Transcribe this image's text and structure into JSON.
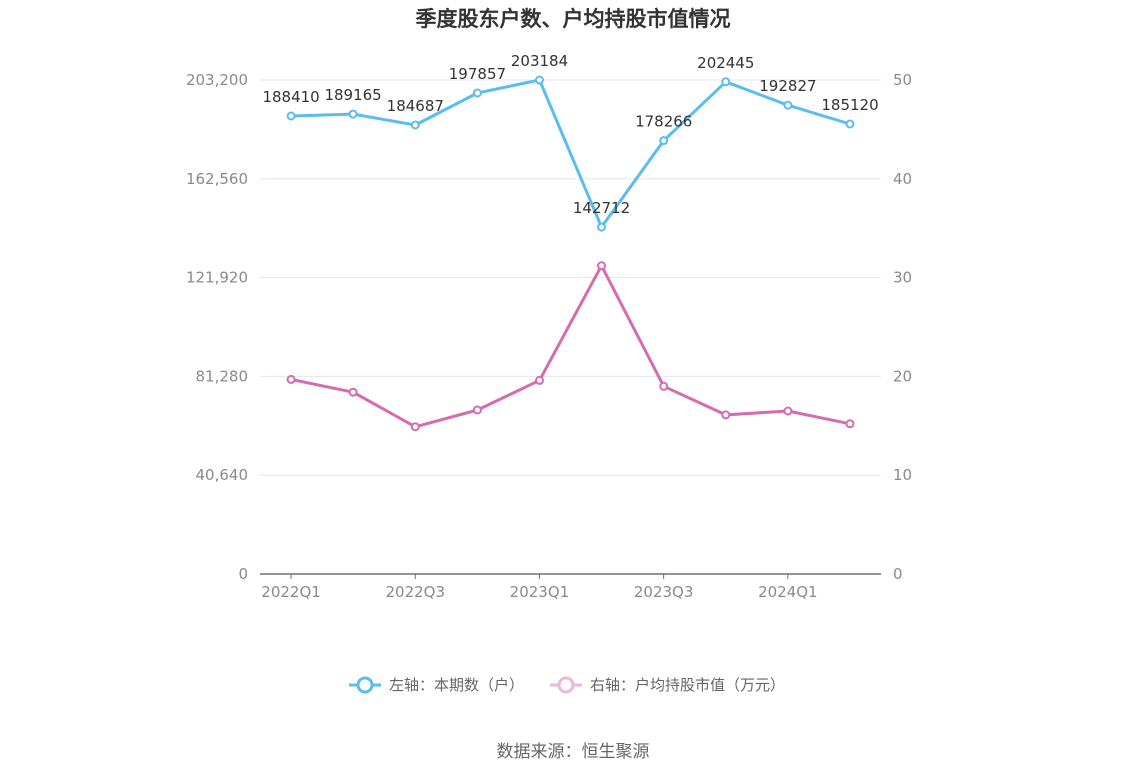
{
  "title": "季度股东户数、户均持股市值情况",
  "source": "数据来源：恒生聚源",
  "colors": {
    "series_left": "#5bbcef",
    "series_right": "#d46cb2",
    "grid": "#e3e6ef",
    "axis": "#6e7079"
  },
  "chart_data": {
    "type": "line",
    "title": "季度股东户数、户均持股市值情况",
    "categories": [
      "2022Q1",
      "2022Q2",
      "2022Q3",
      "2022Q4",
      "2023Q1",
      "2023Q2",
      "2023Q3",
      "2023Q4",
      "2024Q1",
      "2024Q2"
    ],
    "x_tick_labels": [
      "2022Q1",
      "2022Q3",
      "2023Q1",
      "2023Q3",
      "2024Q1"
    ],
    "y_left": {
      "range": [
        0,
        203200
      ],
      "tick_labels": [
        "0",
        "40,640",
        "81,280",
        "121,920",
        "162,560",
        "203,200"
      ],
      "tick_values": [
        0,
        40640,
        81280,
        121920,
        162560,
        203200
      ]
    },
    "y_right": {
      "range": [
        0,
        50
      ],
      "tick_labels": [
        "0",
        "10",
        "20",
        "30",
        "40",
        "50"
      ],
      "tick_values": [
        0,
        10,
        20,
        30,
        40,
        50
      ]
    },
    "grid": true,
    "legend_position": "bottom",
    "series": [
      {
        "name": "左轴：本期数（户）",
        "axis": "left",
        "values": [
          188410,
          189165,
          184687,
          197857,
          203184,
          142712,
          178266,
          202445,
          192827,
          185120
        ],
        "data_labels": [
          "188410",
          "189165",
          "184687",
          "197857",
          "203184",
          "142712",
          "178266",
          "202445",
          "192827",
          "185120"
        ]
      },
      {
        "name": "右轴：户均持股市值（万元）",
        "axis": "right",
        "values": [
          19.7,
          18.4,
          14.9,
          16.6,
          19.6,
          31.2,
          19.0,
          16.1,
          16.5,
          15.2
        ]
      }
    ]
  }
}
